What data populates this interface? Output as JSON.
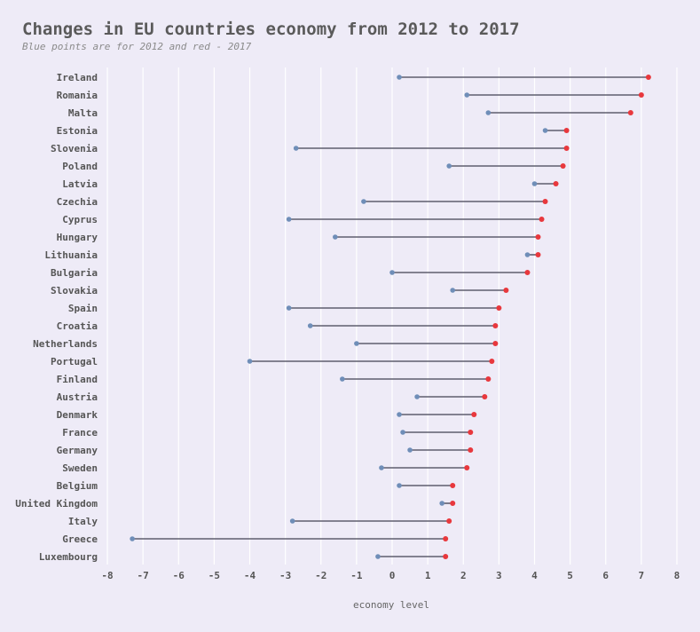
{
  "chart_data": {
    "type": "dumbbell",
    "title": "Changes in EU countries economy from 2012 to 2017",
    "subtitle": "Blue points are for 2012 and red - 2017",
    "xlabel": "economy level",
    "ylabel": "",
    "xlim": [
      -8.2,
      8.1
    ],
    "xticks": [
      -8,
      -7,
      -6,
      -5,
      -4,
      -3,
      -2,
      -1,
      0,
      1,
      2,
      3,
      4,
      5,
      6,
      7,
      8
    ],
    "grid": "vertical",
    "colors": {
      "start": "#6F8EB8",
      "end": "#E8383D",
      "connector": "#5E5E6E",
      "grid": "#FFFFFF",
      "background": "#EEEBF7"
    },
    "series": [
      {
        "name": "2012",
        "role": "start"
      },
      {
        "name": "2017",
        "role": "end"
      }
    ],
    "rows": [
      {
        "country": "Ireland",
        "v2012": 0.2,
        "v2017": 7.2
      },
      {
        "country": "Romania",
        "v2012": 2.1,
        "v2017": 7.0
      },
      {
        "country": "Malta",
        "v2012": 2.7,
        "v2017": 6.7
      },
      {
        "country": "Estonia",
        "v2012": 4.3,
        "v2017": 4.9
      },
      {
        "country": "Slovenia",
        "v2012": -2.7,
        "v2017": 4.9
      },
      {
        "country": "Poland",
        "v2012": 1.6,
        "v2017": 4.8
      },
      {
        "country": "Latvia",
        "v2012": 4.0,
        "v2017": 4.6
      },
      {
        "country": "Czechia",
        "v2012": -0.8,
        "v2017": 4.3
      },
      {
        "country": "Cyprus",
        "v2012": -2.9,
        "v2017": 4.2
      },
      {
        "country": "Hungary",
        "v2012": -1.6,
        "v2017": 4.1
      },
      {
        "country": "Lithuania",
        "v2012": 3.8,
        "v2017": 4.1
      },
      {
        "country": "Bulgaria",
        "v2012": 0.0,
        "v2017": 3.8
      },
      {
        "country": "Slovakia",
        "v2012": 1.7,
        "v2017": 3.2
      },
      {
        "country": "Spain",
        "v2012": -2.9,
        "v2017": 3.0
      },
      {
        "country": "Croatia",
        "v2012": -2.3,
        "v2017": 2.9
      },
      {
        "country": "Netherlands",
        "v2012": -1.0,
        "v2017": 2.9
      },
      {
        "country": "Portugal",
        "v2012": -4.0,
        "v2017": 2.8
      },
      {
        "country": "Finland",
        "v2012": -1.4,
        "v2017": 2.7
      },
      {
        "country": "Austria",
        "v2012": 0.7,
        "v2017": 2.6
      },
      {
        "country": "Denmark",
        "v2012": 0.2,
        "v2017": 2.3
      },
      {
        "country": "France",
        "v2012": 0.3,
        "v2017": 2.2
      },
      {
        "country": "Germany",
        "v2012": 0.5,
        "v2017": 2.2
      },
      {
        "country": "Sweden",
        "v2012": -0.3,
        "v2017": 2.1
      },
      {
        "country": "Belgium",
        "v2012": 0.2,
        "v2017": 1.7
      },
      {
        "country": "United Kingdom",
        "v2012": 1.4,
        "v2017": 1.7
      },
      {
        "country": "Italy",
        "v2012": -2.8,
        "v2017": 1.6
      },
      {
        "country": "Greece",
        "v2012": -7.3,
        "v2017": 1.5
      },
      {
        "country": "Luxembourg",
        "v2012": -0.4,
        "v2017": 1.5
      }
    ]
  }
}
